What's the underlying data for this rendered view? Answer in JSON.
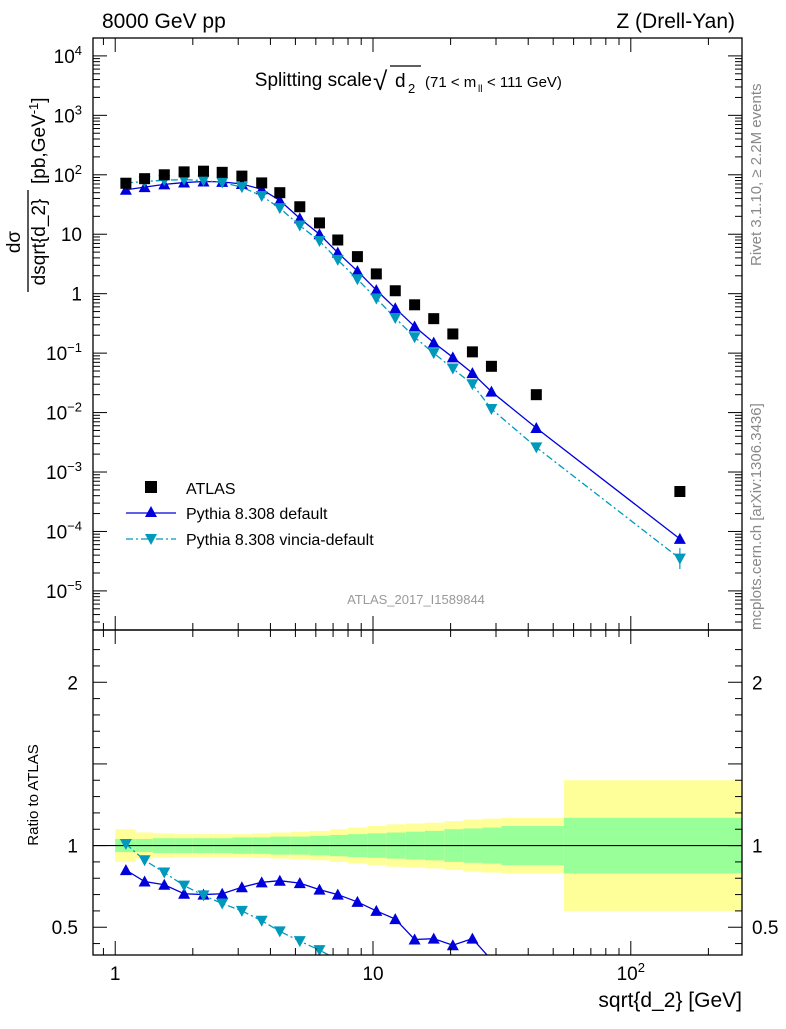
{
  "header": {
    "left": "8000 GeV pp",
    "right": "Z (Drell-Yan)",
    "subtitle": "Splitting scale",
    "sqrt_symbol": "√",
    "sqrt_arg": "d",
    "sqrt_sub": "2",
    "cut_open": "(71 < m",
    "cut_sub": "ll",
    "cut_close": "< 111 GeV)"
  },
  "side_labels": {
    "rivet": "Rivet 3.1.10, ≥ 2.2M events",
    "mcplots": "mcplots.cern.ch [arXiv:1306.3436]"
  },
  "watermark": "ATLAS_2017_I1589844",
  "top_ylabel": {
    "num": "dσ",
    "den": "dsqrt{d_2}",
    "units": "[pb,GeV",
    "units_sup": "-1",
    "units_close": "]"
  },
  "ratio_ylabel": "Ratio to ATLAS",
  "xlabel": "sqrt{d_2} [GeV]",
  "legend": {
    "atlas": "ATLAS",
    "pythia": "Pythia 8.308 default",
    "vincia": "Pythia 8.308 vincia-default"
  },
  "colors": {
    "atlas": "#000000",
    "pythia": "#0000dd",
    "vincia": "#0099bb",
    "band_inner": "#99ff99",
    "band_outer": "#ffff99"
  },
  "chart_data": {
    "type": "scatter",
    "x_scale": "log",
    "xlim": [
      0.82,
      270
    ],
    "x_ticks": [
      {
        "v": 1,
        "label": "1"
      },
      {
        "v": 10,
        "label": "10"
      },
      {
        "v": 100,
        "label": "10",
        "sup": "2"
      }
    ],
    "main": {
      "y_scale": "log",
      "ylim": [
        2.2e-06,
        20000
      ],
      "y_ticks": [
        {
          "v": 10000,
          "base": "10",
          "sup": "4"
        },
        {
          "v": 1000,
          "base": "10",
          "sup": "3"
        },
        {
          "v": 100,
          "base": "10",
          "sup": "2"
        },
        {
          "v": 10,
          "base": "10"
        },
        {
          "v": 1,
          "base": "1"
        },
        {
          "v": 0.1,
          "base": "10",
          "sup": "−1"
        },
        {
          "v": 0.01,
          "base": "10",
          "sup": "−2"
        },
        {
          "v": 0.001,
          "base": "10",
          "sup": "−3"
        },
        {
          "v": 0.0001,
          "base": "10",
          "sup": "−4"
        },
        {
          "v": 1e-05,
          "base": "10",
          "sup": "−5"
        }
      ],
      "series": [
        {
          "name": "ATLAS",
          "x": [
            1.1,
            1.3,
            1.55,
            1.85,
            2.2,
            2.6,
            3.1,
            3.7,
            4.35,
            5.2,
            6.2,
            7.3,
            8.7,
            10.3,
            12.2,
            14.5,
            17.2,
            20.4,
            24.3,
            28.8,
            43,
            155
          ],
          "y": [
            72,
            86,
            100,
            112,
            115,
            110,
            95,
            73,
            50,
            29,
            15.5,
            8,
            4.2,
            2.15,
            1.12,
            0.65,
            0.38,
            0.21,
            0.105,
            0.06,
            0.02,
            0.00047
          ]
        },
        {
          "name": "Pythia 8.308 default",
          "x": [
            1.1,
            1.3,
            1.55,
            1.85,
            2.2,
            2.6,
            3.1,
            3.7,
            4.35,
            5.2,
            6.2,
            7.3,
            8.7,
            10.3,
            12.2,
            14.5,
            17.2,
            20.4,
            24.3,
            28.8,
            43,
            155
          ],
          "y": [
            56,
            62,
            69,
            74,
            77,
            76,
            70,
            57,
            37,
            18.5,
            10,
            4.9,
            2.4,
            1.15,
            0.57,
            0.28,
            0.15,
            0.085,
            0.046,
            0.0225,
            0.0055,
            7.5e-05
          ]
        },
        {
          "name": "Pythia 8.308 vincia-default",
          "x": [
            1.1,
            1.3,
            1.55,
            1.85,
            2.2,
            2.6,
            3.1,
            3.7,
            4.35,
            5.2,
            6.2,
            7.3,
            8.7,
            10.3,
            12.2,
            14.5,
            17.2,
            20.4,
            24.3,
            28.8,
            43,
            155
          ],
          "y": [
            73,
            77,
            81,
            83,
            80,
            74,
            62,
            44,
            27.5,
            14,
            7.7,
            3.7,
            1.75,
            0.83,
            0.39,
            0.185,
            0.1,
            0.055,
            0.03,
            0.0115,
            0.0026,
            3.5e-05
          ]
        }
      ]
    },
    "ratio": {
      "y_scale": "linear",
      "ylim": [
        0.33,
        2.32
      ],
      "y_ticks": [
        {
          "v": 0.5,
          "label": "0.5"
        },
        {
          "v": 1,
          "label": "1"
        },
        {
          "v": 2,
          "label": "2"
        }
      ],
      "bands": {
        "edges": [
          1,
          1.2,
          1.4,
          1.7,
          2.0,
          2.4,
          2.85,
          3.4,
          4.0,
          4.8,
          5.7,
          6.8,
          8.0,
          9.5,
          11.3,
          13.4,
          15.9,
          18.9,
          22.4,
          26.6,
          31.5,
          55,
          270
        ],
        "inner_lo": [
          0.96,
          0.96,
          0.955,
          0.955,
          0.955,
          0.955,
          0.95,
          0.95,
          0.945,
          0.945,
          0.94,
          0.935,
          0.93,
          0.925,
          0.92,
          0.915,
          0.91,
          0.9,
          0.895,
          0.89,
          0.88,
          0.83
        ],
        "inner_hi": [
          1.04,
          1.04,
          1.045,
          1.045,
          1.045,
          1.045,
          1.05,
          1.05,
          1.055,
          1.055,
          1.06,
          1.065,
          1.07,
          1.075,
          1.08,
          1.085,
          1.09,
          1.1,
          1.105,
          1.11,
          1.12,
          1.17
        ],
        "outer_lo": [
          0.9,
          0.92,
          0.925,
          0.93,
          0.93,
          0.93,
          0.93,
          0.925,
          0.92,
          0.915,
          0.91,
          0.9,
          0.89,
          0.88,
          0.87,
          0.865,
          0.86,
          0.85,
          0.84,
          0.835,
          0.83,
          0.6
        ],
        "outer_hi": [
          1.1,
          1.08,
          1.075,
          1.07,
          1.07,
          1.07,
          1.07,
          1.075,
          1.08,
          1.085,
          1.09,
          1.1,
          1.11,
          1.12,
          1.13,
          1.135,
          1.14,
          1.15,
          1.16,
          1.165,
          1.17,
          1.4
        ]
      },
      "series": [
        {
          "name": "Pythia 8.308 default",
          "x": [
            1.1,
            1.3,
            1.55,
            1.85,
            2.2,
            2.6,
            3.1,
            3.7,
            4.35,
            5.2,
            6.2,
            7.3,
            8.7,
            10.3,
            12.2,
            14.5,
            17.2,
            20.4,
            24.3
          ],
          "y": [
            0.85,
            0.78,
            0.76,
            0.705,
            0.7,
            0.705,
            0.745,
            0.775,
            0.785,
            0.77,
            0.73,
            0.7,
            0.655,
            0.6,
            0.55,
            0.425,
            0.43,
            0.39,
            0.43
          ]
        },
        {
          "name": "Pythia 8.308 vincia-default",
          "x": [
            1.1,
            1.3,
            1.55,
            1.85,
            2.2,
            2.6,
            3.1,
            3.7,
            4.35,
            5.2,
            6.2
          ],
          "y": [
            1.01,
            0.91,
            0.835,
            0.755,
            0.695,
            0.645,
            0.6,
            0.54,
            0.475,
            0.415,
            0.36
          ]
        }
      ]
    }
  }
}
